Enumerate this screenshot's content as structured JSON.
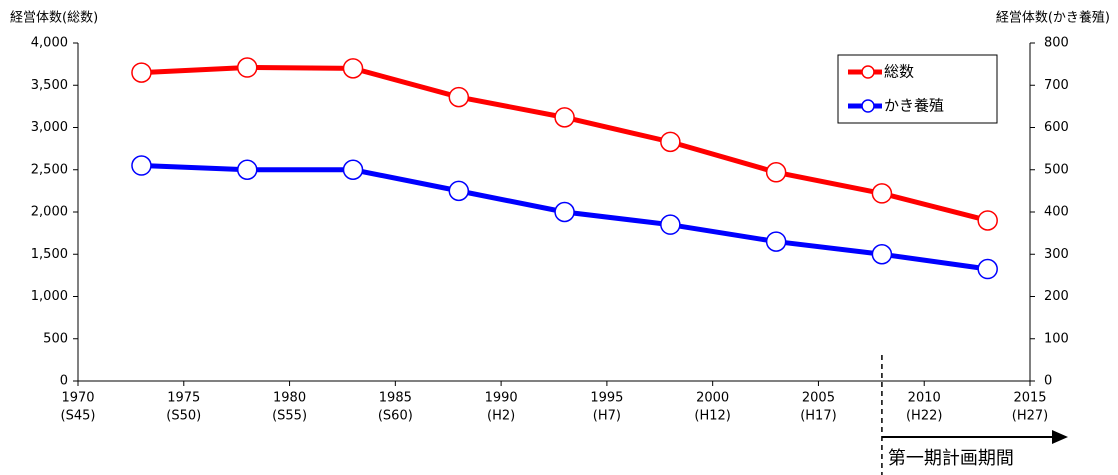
{
  "chart_data": {
    "type": "line",
    "y_label": "経営体数(総数)",
    "y2_label": "経営体数(かき養殖)",
    "x": [
      1973,
      1978,
      1983,
      1988,
      1993,
      1998,
      2003,
      2008,
      2013
    ],
    "series": [
      {
        "name": "総数",
        "color": "#ff0000",
        "values": [
          3650,
          3710,
          3700,
          3360,
          3120,
          2830,
          2470,
          2220,
          1900
        ]
      },
      {
        "name": "かき養殖",
        "color": "#0000ff",
        "axis": "y2",
        "values": [
          510,
          500,
          500,
          450,
          400,
          370,
          330,
          300,
          265
        ]
      }
    ],
    "xlim": [
      1970,
      2015
    ],
    "xticks": [
      1970,
      1975,
      1980,
      1985,
      1990,
      1995,
      2000,
      2005,
      2010,
      2015
    ],
    "xtick_sublabels": [
      "(S45)",
      "(S50)",
      "(S55)",
      "(S60)",
      "(H2)",
      "(H7)",
      "(H12)",
      "(H17)",
      "(H22)",
      "(H27)"
    ],
    "ylim": [
      0,
      4000
    ],
    "yticks": [
      0,
      500,
      {
        "value": 1000,
        "label": "1,000"
      },
      {
        "value": 1500,
        "label": "1,500"
      },
      {
        "value": 2000,
        "label": "2,000"
      },
      {
        "value": 2500,
        "label": "2,500"
      },
      {
        "value": 3000,
        "label": "3,000"
      },
      {
        "value": 3500,
        "label": "3,500"
      },
      {
        "value": 4000,
        "label": "4,000"
      }
    ],
    "y2lim": [
      0,
      800
    ],
    "y2ticks": [
      0,
      100,
      200,
      300,
      400,
      500,
      600,
      700,
      800
    ],
    "grid": false,
    "legend": "upper right",
    "annotation": {
      "x": 2008,
      "text": "第一期計画期間"
    }
  }
}
